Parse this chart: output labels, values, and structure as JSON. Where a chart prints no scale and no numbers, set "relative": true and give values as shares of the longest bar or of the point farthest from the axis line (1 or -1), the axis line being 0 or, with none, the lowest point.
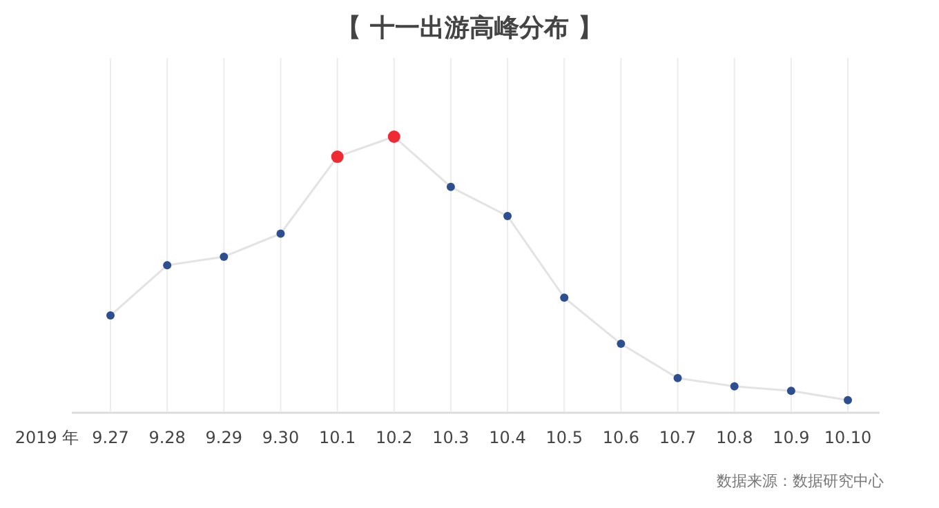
{
  "chart_data": {
    "type": "line",
    "title": "【 十一出游高峰分布 】",
    "xlabel": "2019 年",
    "categories": [
      "9.27",
      "9.28",
      "9.29",
      "9.30",
      "10.1",
      "10.2",
      "10.3",
      "10.4",
      "10.5",
      "10.6",
      "10.7",
      "10.8",
      "10.9",
      "10.10"
    ],
    "series": [
      {
        "color": "#e3e3e3",
        "colors": [
          "#2d4f8f",
          "#2d4f8f",
          "#2d4f8f",
          "#2d4f8f",
          "#ee2a33",
          "#ee2a33",
          "#2d4f8f",
          "#2d4f8f",
          "#2d4f8f",
          "#2d4f8f",
          "#2d4f8f",
          "#2d4f8f",
          "#2d4f8f",
          "#2d4f8f"
        ],
        "values": [
          0.349,
          0.532,
          0.563,
          0.647,
          0.927,
          1,
          0.817,
          0.711,
          0.414,
          0.246,
          0.121,
          0.091,
          0.075,
          0.041
        ]
      }
    ],
    "relative": true,
    "grid": "x",
    "marker": "circle",
    "annotations": [
      "数据来源：数据研究中心"
    ]
  }
}
